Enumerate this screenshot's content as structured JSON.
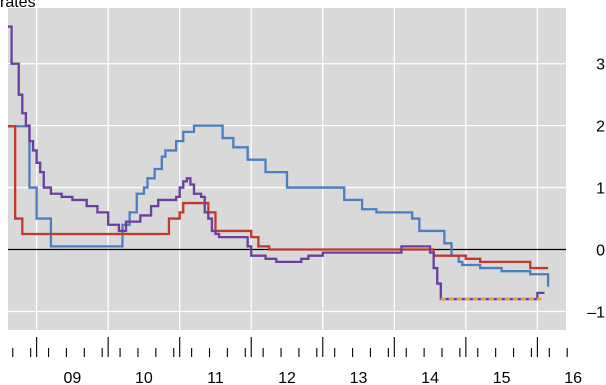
{
  "chart_data": {
    "type": "line",
    "ylabel": "rates",
    "xlim": [
      2008.6,
      2016.4
    ],
    "ylim": [
      -1.3,
      3.9
    ],
    "zero_line": true,
    "grid": true,
    "x_tick_labels": [
      {
        "x": 2009.5,
        "label": "09"
      },
      {
        "x": 2010.5,
        "label": "10"
      },
      {
        "x": 2011.5,
        "label": "11"
      },
      {
        "x": 2012.5,
        "label": "12"
      },
      {
        "x": 2013.5,
        "label": "13"
      },
      {
        "x": 2014.5,
        "label": "14"
      },
      {
        "x": 2015.5,
        "label": "15"
      },
      {
        "x": 2016.5,
        "label": "16"
      }
    ],
    "y_tick_labels": [
      {
        "y": 3,
        "label": "3"
      },
      {
        "y": 2,
        "label": "2"
      },
      {
        "y": 1,
        "label": "1"
      },
      {
        "y": 0,
        "label": "0"
      },
      {
        "y": -1,
        "label": "–1"
      }
    ],
    "series": [
      {
        "color": "#4a7fc1",
        "step": true,
        "points": [
          [
            2008.6,
            1.99
          ],
          [
            2008.9,
            1.0
          ],
          [
            2009.0,
            0.5
          ],
          [
            2009.2,
            0.05
          ],
          [
            2009.55,
            0.05
          ],
          [
            2010.1,
            0.05
          ],
          [
            2010.2,
            0.4
          ],
          [
            2010.3,
            0.6
          ],
          [
            2010.4,
            0.9
          ],
          [
            2010.5,
            1.0
          ],
          [
            2010.55,
            1.15
          ],
          [
            2010.65,
            1.3
          ],
          [
            2010.75,
            1.5
          ],
          [
            2010.8,
            1.6
          ],
          [
            2010.95,
            1.75
          ],
          [
            2011.05,
            1.9
          ],
          [
            2011.2,
            2.0
          ],
          [
            2011.5,
            2.0
          ],
          [
            2011.6,
            1.8
          ],
          [
            2011.75,
            1.65
          ],
          [
            2011.95,
            1.45
          ],
          [
            2012.2,
            1.25
          ],
          [
            2012.5,
            1.0
          ],
          [
            2013.0,
            1.0
          ],
          [
            2013.3,
            0.8
          ],
          [
            2013.55,
            0.65
          ],
          [
            2013.75,
            0.6
          ],
          [
            2014.25,
            0.5
          ],
          [
            2014.35,
            0.3
          ],
          [
            2014.7,
            0.1
          ],
          [
            2014.8,
            -0.1
          ],
          [
            2014.9,
            -0.2
          ],
          [
            2014.95,
            -0.25
          ],
          [
            2015.2,
            -0.3
          ],
          [
            2015.5,
            -0.35
          ],
          [
            2015.9,
            -0.4
          ],
          [
            2016.15,
            -0.6
          ]
        ]
      },
      {
        "color": "#c0392b",
        "step": true,
        "points": [
          [
            2008.6,
            1.99
          ],
          [
            2008.7,
            0.5
          ],
          [
            2008.8,
            0.25
          ],
          [
            2009.5,
            0.25
          ],
          [
            2010.0,
            0.25
          ],
          [
            2010.75,
            0.25
          ],
          [
            2010.85,
            0.5
          ],
          [
            2011.0,
            0.6
          ],
          [
            2011.05,
            0.75
          ],
          [
            2011.35,
            0.75
          ],
          [
            2011.4,
            0.6
          ],
          [
            2011.5,
            0.3
          ],
          [
            2012.0,
            0.2
          ],
          [
            2012.1,
            0.05
          ],
          [
            2012.25,
            0.0
          ],
          [
            2013.0,
            0.0
          ],
          [
            2014.5,
            0.0
          ],
          [
            2014.55,
            -0.1
          ],
          [
            2014.85,
            -0.1
          ],
          [
            2015.0,
            -0.15
          ],
          [
            2015.2,
            -0.2
          ],
          [
            2015.5,
            -0.2
          ],
          [
            2015.9,
            -0.3
          ],
          [
            2016.15,
            -0.3
          ]
        ]
      },
      {
        "color": "#6b3fa0",
        "step": true,
        "points": [
          [
            2008.6,
            3.6
          ],
          [
            2008.65,
            3.0
          ],
          [
            2008.75,
            2.5
          ],
          [
            2008.8,
            2.2
          ],
          [
            2008.85,
            2.0
          ],
          [
            2008.9,
            1.75
          ],
          [
            2008.95,
            1.6
          ],
          [
            2009.0,
            1.4
          ],
          [
            2009.05,
            1.25
          ],
          [
            2009.1,
            1.0
          ],
          [
            2009.2,
            0.9
          ],
          [
            2009.35,
            0.85
          ],
          [
            2009.5,
            0.8
          ],
          [
            2009.7,
            0.7
          ],
          [
            2009.85,
            0.6
          ],
          [
            2010.0,
            0.4
          ],
          [
            2010.15,
            0.3
          ],
          [
            2010.25,
            0.45
          ],
          [
            2010.45,
            0.55
          ],
          [
            2010.6,
            0.7
          ],
          [
            2010.7,
            0.8
          ],
          [
            2010.95,
            0.85
          ],
          [
            2011.0,
            1.0
          ],
          [
            2011.05,
            1.1
          ],
          [
            2011.1,
            1.15
          ],
          [
            2011.15,
            1.05
          ],
          [
            2011.2,
            0.9
          ],
          [
            2011.3,
            0.85
          ],
          [
            2011.35,
            0.6
          ],
          [
            2011.4,
            0.5
          ],
          [
            2011.45,
            0.3
          ],
          [
            2011.5,
            0.25
          ],
          [
            2011.55,
            0.2
          ],
          [
            2011.8,
            0.2
          ],
          [
            2011.95,
            0.05
          ],
          [
            2012.0,
            -0.1
          ],
          [
            2012.2,
            -0.15
          ],
          [
            2012.35,
            -0.2
          ],
          [
            2012.55,
            -0.2
          ],
          [
            2012.7,
            -0.15
          ],
          [
            2012.8,
            -0.1
          ],
          [
            2013.0,
            -0.05
          ],
          [
            2014.0,
            -0.05
          ],
          [
            2014.1,
            0.05
          ],
          [
            2014.3,
            0.05
          ],
          [
            2014.5,
            -0.05
          ],
          [
            2014.55,
            -0.3
          ],
          [
            2014.6,
            -0.55
          ],
          [
            2014.65,
            -0.8
          ],
          [
            2015.5,
            -0.8
          ],
          [
            2015.95,
            -0.8
          ],
          [
            2016.0,
            -0.7
          ],
          [
            2016.1,
            -0.7
          ]
        ]
      },
      {
        "color": "#e8a33d",
        "step": true,
        "dashed": true,
        "points": [
          [
            2014.65,
            -0.8
          ],
          [
            2016.1,
            -0.8
          ]
        ]
      }
    ]
  }
}
